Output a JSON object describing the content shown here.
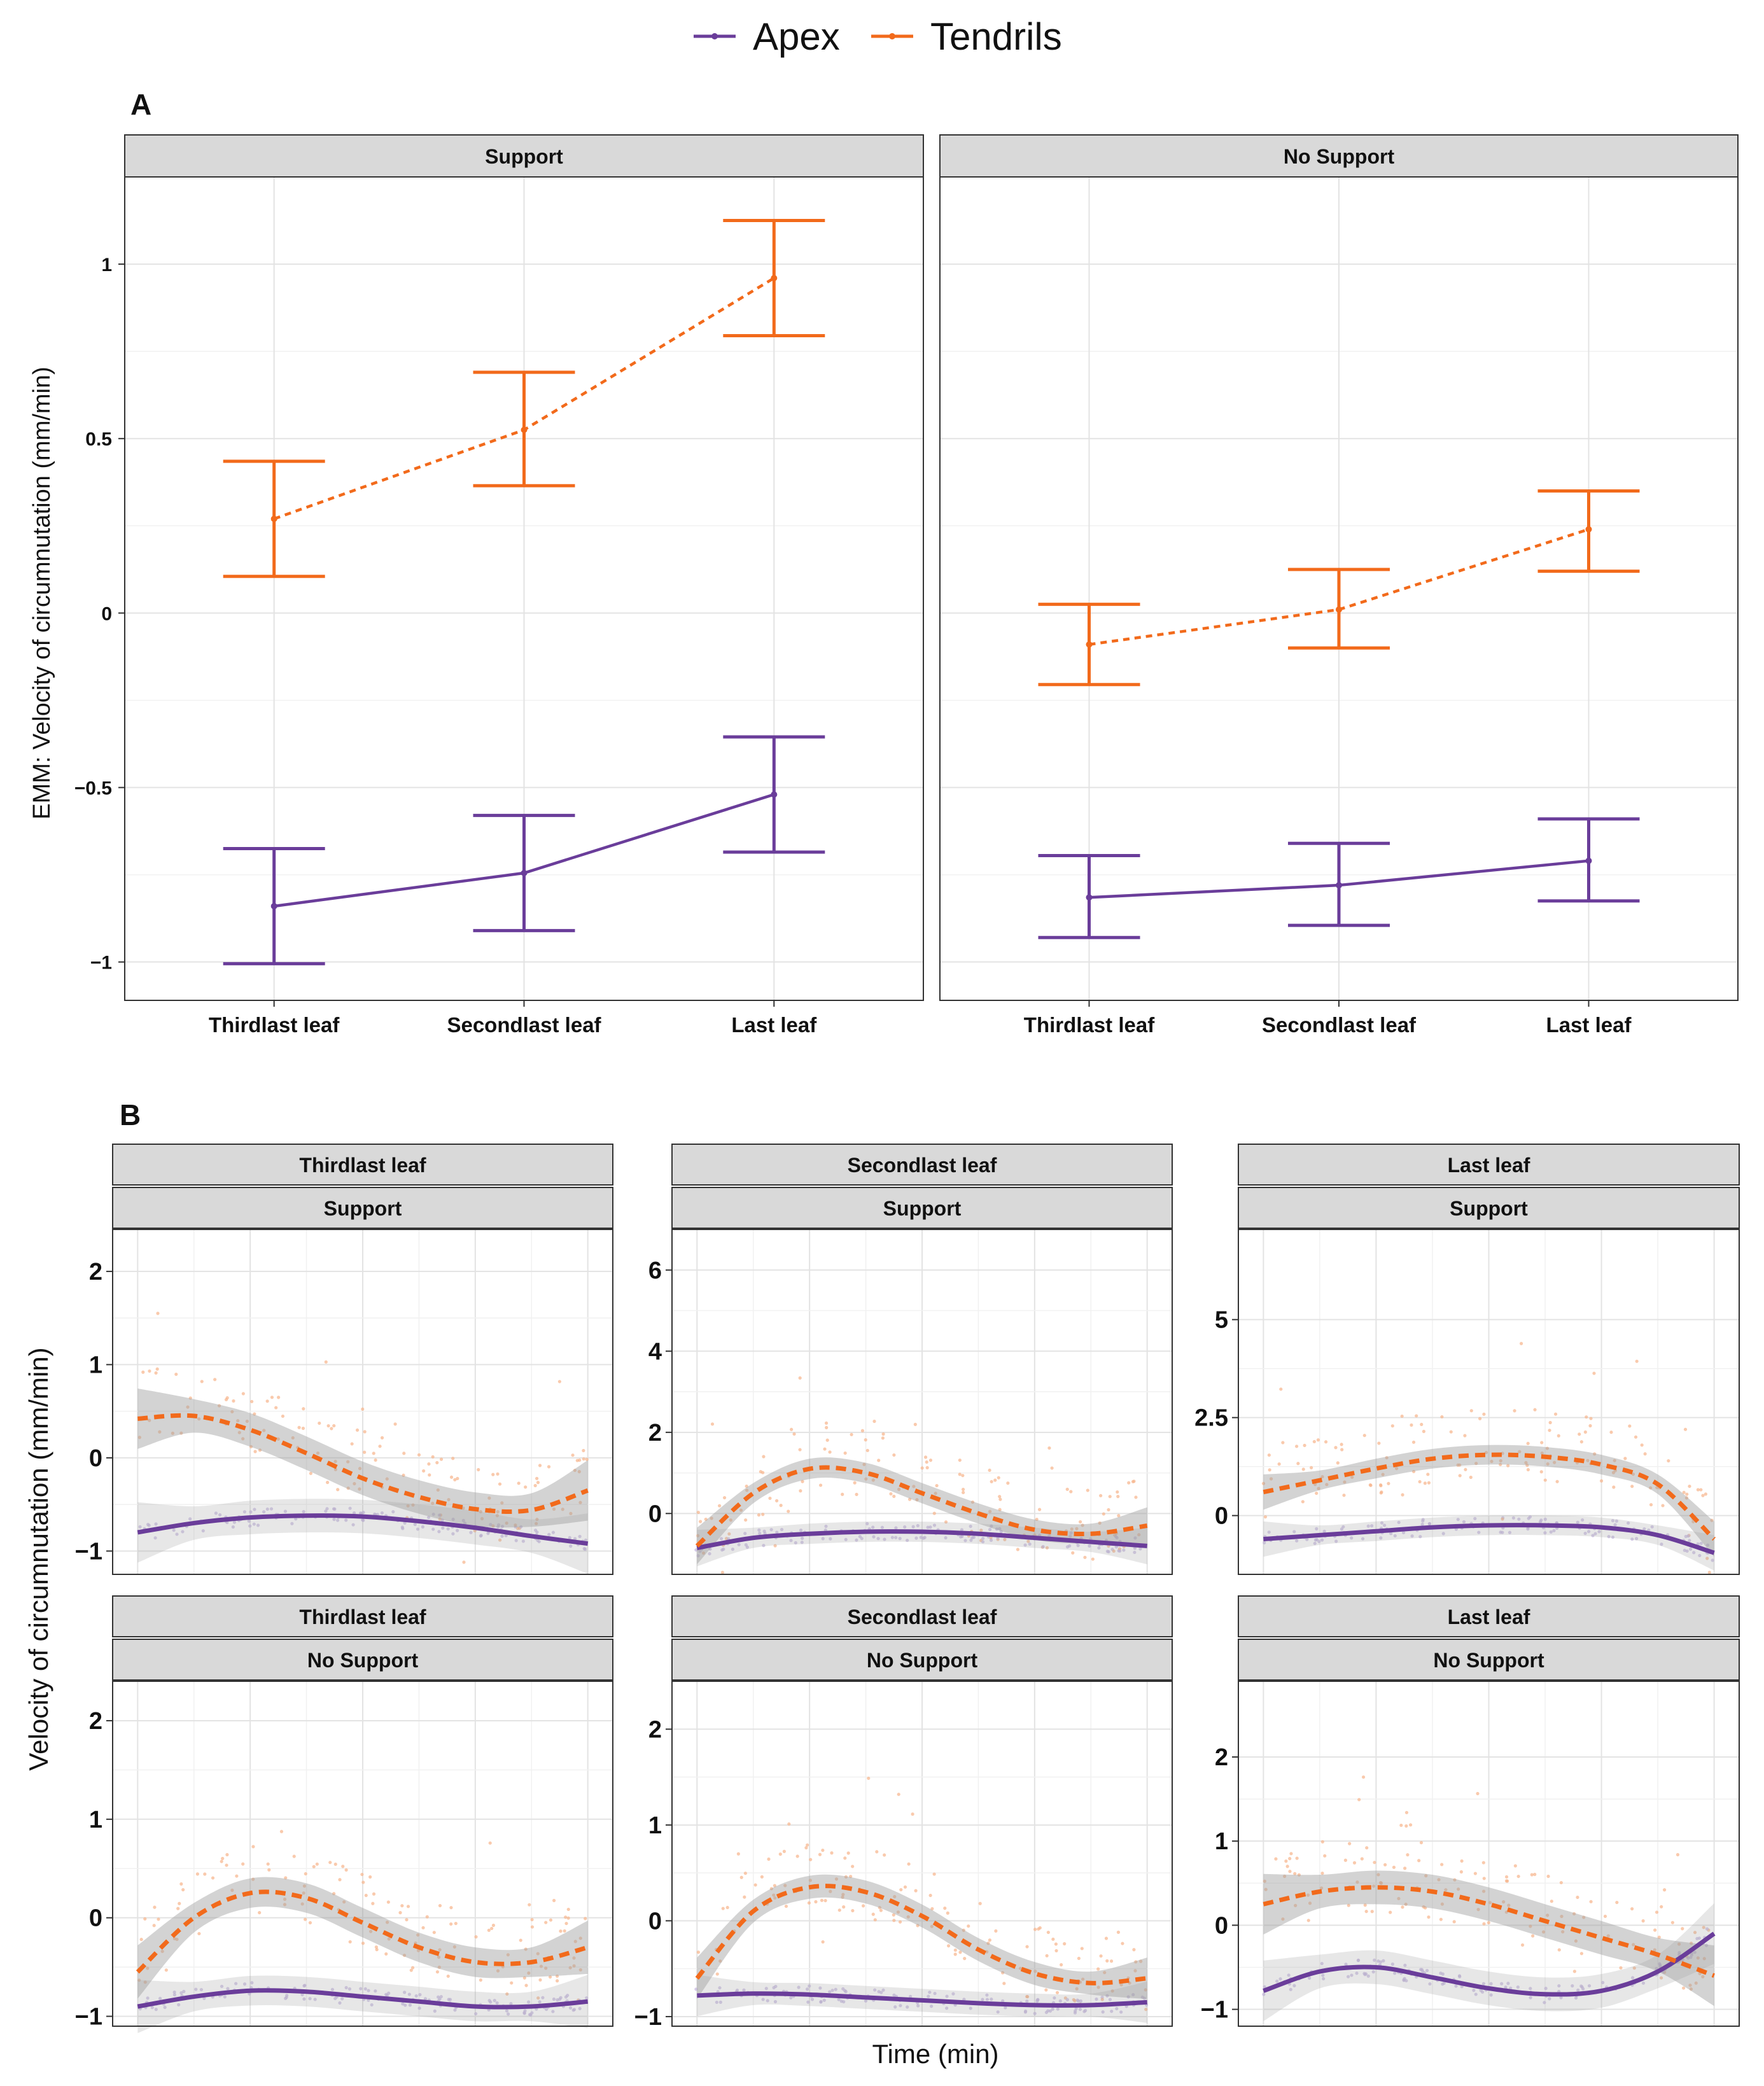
{
  "legend": {
    "items": [
      {
        "label": "Apex",
        "color": "#6a3d9a"
      },
      {
        "label": "Tendrils",
        "color": "#f26a1b"
      }
    ]
  },
  "panel_a": {
    "tag": "A",
    "ylabel": "EMM: Velocity of circumnutation  (mm/min)"
  },
  "panel_b": {
    "tag": "B",
    "ylabel": "Velocity of circumnutation  (mm/min)",
    "xlabel": "Time   (min)"
  },
  "chart_data": [
    {
      "type": "line",
      "title": "A",
      "facets": [
        "Support",
        "No Support"
      ],
      "categories": [
        "Thirdlast leaf",
        "Secondlast leaf",
        "Last leaf"
      ],
      "ylabel": "EMM: Velocity of circumnutation  (mm/min)",
      "ylim": [
        -1.11,
        1.25
      ],
      "yticks": [
        -1,
        -0.5,
        0,
        0.5,
        1
      ],
      "ytick_labels": [
        "−1",
        "−0.5",
        "0",
        "0.5",
        "1"
      ],
      "grid": true,
      "series": [
        {
          "name": "Apex",
          "facet": "Support",
          "values": [
            -0.84,
            -0.745,
            -0.52
          ],
          "lower": [
            -1.005,
            -0.91,
            -0.685
          ],
          "upper": [
            -0.675,
            -0.58,
            -0.355
          ]
        },
        {
          "name": "Tendrils",
          "facet": "Support",
          "values": [
            0.27,
            0.525,
            0.96
          ],
          "lower": [
            0.105,
            0.365,
            0.795
          ],
          "upper": [
            0.435,
            0.69,
            1.125
          ]
        },
        {
          "name": "Apex",
          "facet": "No Support",
          "values": [
            -0.815,
            -0.78,
            -0.71
          ],
          "lower": [
            -0.93,
            -0.895,
            -0.825
          ],
          "upper": [
            -0.695,
            -0.66,
            -0.59
          ]
        },
        {
          "name": "Tendrils",
          "facet": "No Support",
          "values": [
            -0.09,
            0.01,
            0.24
          ],
          "lower": [
            -0.205,
            -0.1,
            0.12
          ],
          "upper": [
            0.025,
            0.125,
            0.35
          ]
        }
      ]
    },
    {
      "type": "line",
      "title": "B",
      "xlabel": "Time   (min)",
      "ylabel": "Velocity of circumnutation  (mm/min)",
      "grid": true,
      "panels": [
        {
          "leaf": "Thirdlast leaf",
          "support": "Support",
          "ylim": [
            -1.25,
            2.45
          ],
          "yticks": [
            -1,
            0,
            1,
            2
          ],
          "ytick_labels": [
            "−1",
            "0",
            "1",
            "2"
          ],
          "apex": [
            -0.8,
            -0.7,
            -0.64,
            -0.62,
            -0.63,
            -0.68,
            -0.75,
            -0.84,
            -0.92
          ],
          "tendrils": [
            0.42,
            0.45,
            0.3,
            0.05,
            -0.22,
            -0.42,
            -0.55,
            -0.56,
            -0.35
          ],
          "band_se": 0.18
        },
        {
          "leaf": "Secondlast leaf",
          "support": "Support",
          "ylim": [
            -1.5,
            7.0
          ],
          "yticks": [
            0,
            2,
            4,
            6
          ],
          "ytick_labels": [
            "0",
            "2",
            "4",
            "6"
          ],
          "apex": [
            -0.85,
            -0.6,
            -0.5,
            -0.45,
            -0.45,
            -0.5,
            -0.6,
            -0.7,
            -0.8
          ],
          "tendrils": [
            -0.8,
            0.5,
            1.1,
            1.0,
            0.5,
            0.0,
            -0.4,
            -0.5,
            -0.3
          ],
          "band_se": 0.25
        },
        {
          "leaf": "Last leaf",
          "support": "Support",
          "ylim": [
            -1.5,
            7.3
          ],
          "yticks": [
            0,
            2.5,
            5
          ],
          "ytick_labels": [
            "0",
            "2.5",
            "5"
          ],
          "apex": [
            -0.6,
            -0.5,
            -0.4,
            -0.3,
            -0.25,
            -0.25,
            -0.3,
            -0.5,
            -0.95
          ],
          "tendrils": [
            0.6,
            0.9,
            1.2,
            1.45,
            1.55,
            1.5,
            1.3,
            0.8,
            -0.6
          ],
          "band_se": 0.25
        },
        {
          "leaf": "Thirdlast leaf",
          "support": "No Support",
          "ylim": [
            -1.1,
            2.4
          ],
          "yticks": [
            -1,
            0,
            1,
            2
          ],
          "ytick_labels": [
            "−1",
            "0",
            "1",
            "2"
          ],
          "apex": [
            -0.9,
            -0.8,
            -0.74,
            -0.75,
            -0.8,
            -0.85,
            -0.9,
            -0.9,
            -0.85
          ],
          "tendrils": [
            -0.55,
            0.0,
            0.25,
            0.2,
            -0.05,
            -0.3,
            -0.45,
            -0.45,
            -0.3
          ],
          "band_se": 0.15
        },
        {
          "leaf": "Secondlast leaf",
          "support": "No Support",
          "ylim": [
            -1.1,
            2.5
          ],
          "yticks": [
            -1,
            0,
            1,
            2
          ],
          "ytick_labels": [
            "−1",
            "0",
            "1",
            "2"
          ],
          "apex": [
            -0.78,
            -0.76,
            -0.77,
            -0.8,
            -0.83,
            -0.86,
            -0.88,
            -0.88,
            -0.85
          ],
          "tendrils": [
            -0.6,
            0.1,
            0.35,
            0.3,
            0.05,
            -0.3,
            -0.55,
            -0.65,
            -0.6
          ],
          "band_se": 0.12
        },
        {
          "leaf": "Last leaf",
          "support": "No Support",
          "ylim": [
            -1.2,
            2.9
          ],
          "yticks": [
            -1,
            0,
            1,
            2
          ],
          "ytick_labels": [
            "−1",
            "0",
            "1",
            "2"
          ],
          "apex": [
            -0.78,
            -0.55,
            -0.5,
            -0.62,
            -0.75,
            -0.82,
            -0.78,
            -0.55,
            -0.1
          ],
          "tendrils": [
            0.25,
            0.4,
            0.45,
            0.4,
            0.25,
            0.05,
            -0.15,
            -0.35,
            -0.6
          ],
          "band_se": 0.2
        }
      ]
    }
  ]
}
